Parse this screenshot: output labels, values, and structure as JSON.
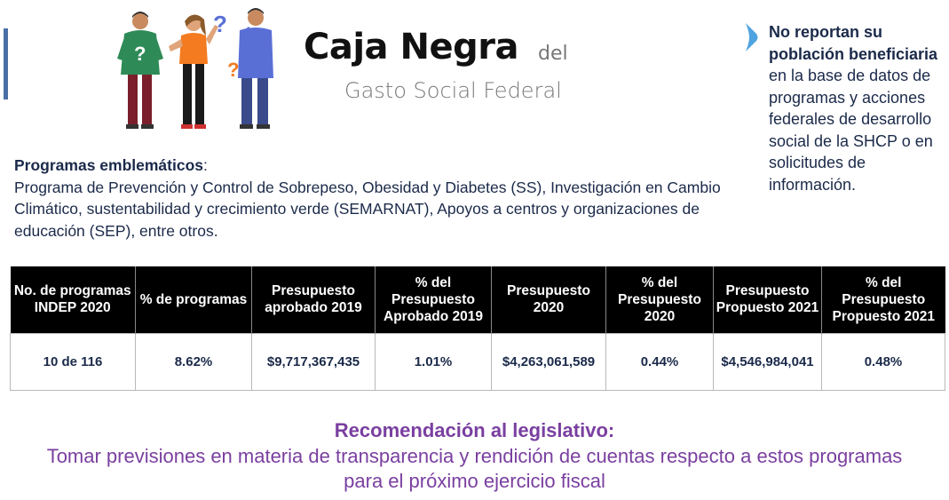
{
  "brand": {
    "main": "Caja Negra",
    "del": "del",
    "subtitle": "Gasto Social Federal"
  },
  "illustration": {
    "question_marks": [
      "?",
      "?",
      "?"
    ]
  },
  "note": {
    "icon": "location-marker-icon",
    "strong": "No reportan su población beneficiaria",
    "text": "en la base de datos de programas y acciones federales de desarrollo social de la SHCP o en solicitudes de información."
  },
  "programs": {
    "title": "Programas emblemáticos",
    "colon": ":",
    "text": "Programa de Prevención y Control de Sobrepeso, Obesidad y Diabetes (SS), Investigación en Cambio Climático, sustentabilidad y crecimiento verde (SEMARNAT), Apoyos a centros y organizaciones de educación (SEP), entre otros."
  },
  "table": {
    "headers": [
      "No. de programas INDEP 2020",
      "% de programas",
      "Presupuesto aprobado 2019",
      "% del Presupuesto Aprobado 2019",
      "Presupuesto 2020",
      "% del Presupuesto 2020",
      "Presupuesto Propuesto 2021",
      "% del Presupuesto Propuesto 2021"
    ],
    "row": [
      "10 de 116",
      "8.62%",
      "$9,717,367,435",
      "1.01%",
      "$4,263,061,589",
      "0.44%",
      "$4,546,984,041",
      "0.48%"
    ]
  },
  "recommendation": {
    "title": "Recomendación al legislativo:",
    "line1": "Tomar previsiones en materia de transparencia y rendición de cuentas respecto a estos programas",
    "line2": "para el próximo ejercicio fiscal"
  },
  "colors": {
    "accent_blue": "#4fa3e0",
    "purple": "#7a3fa0",
    "navy": "#1b2a4a"
  }
}
